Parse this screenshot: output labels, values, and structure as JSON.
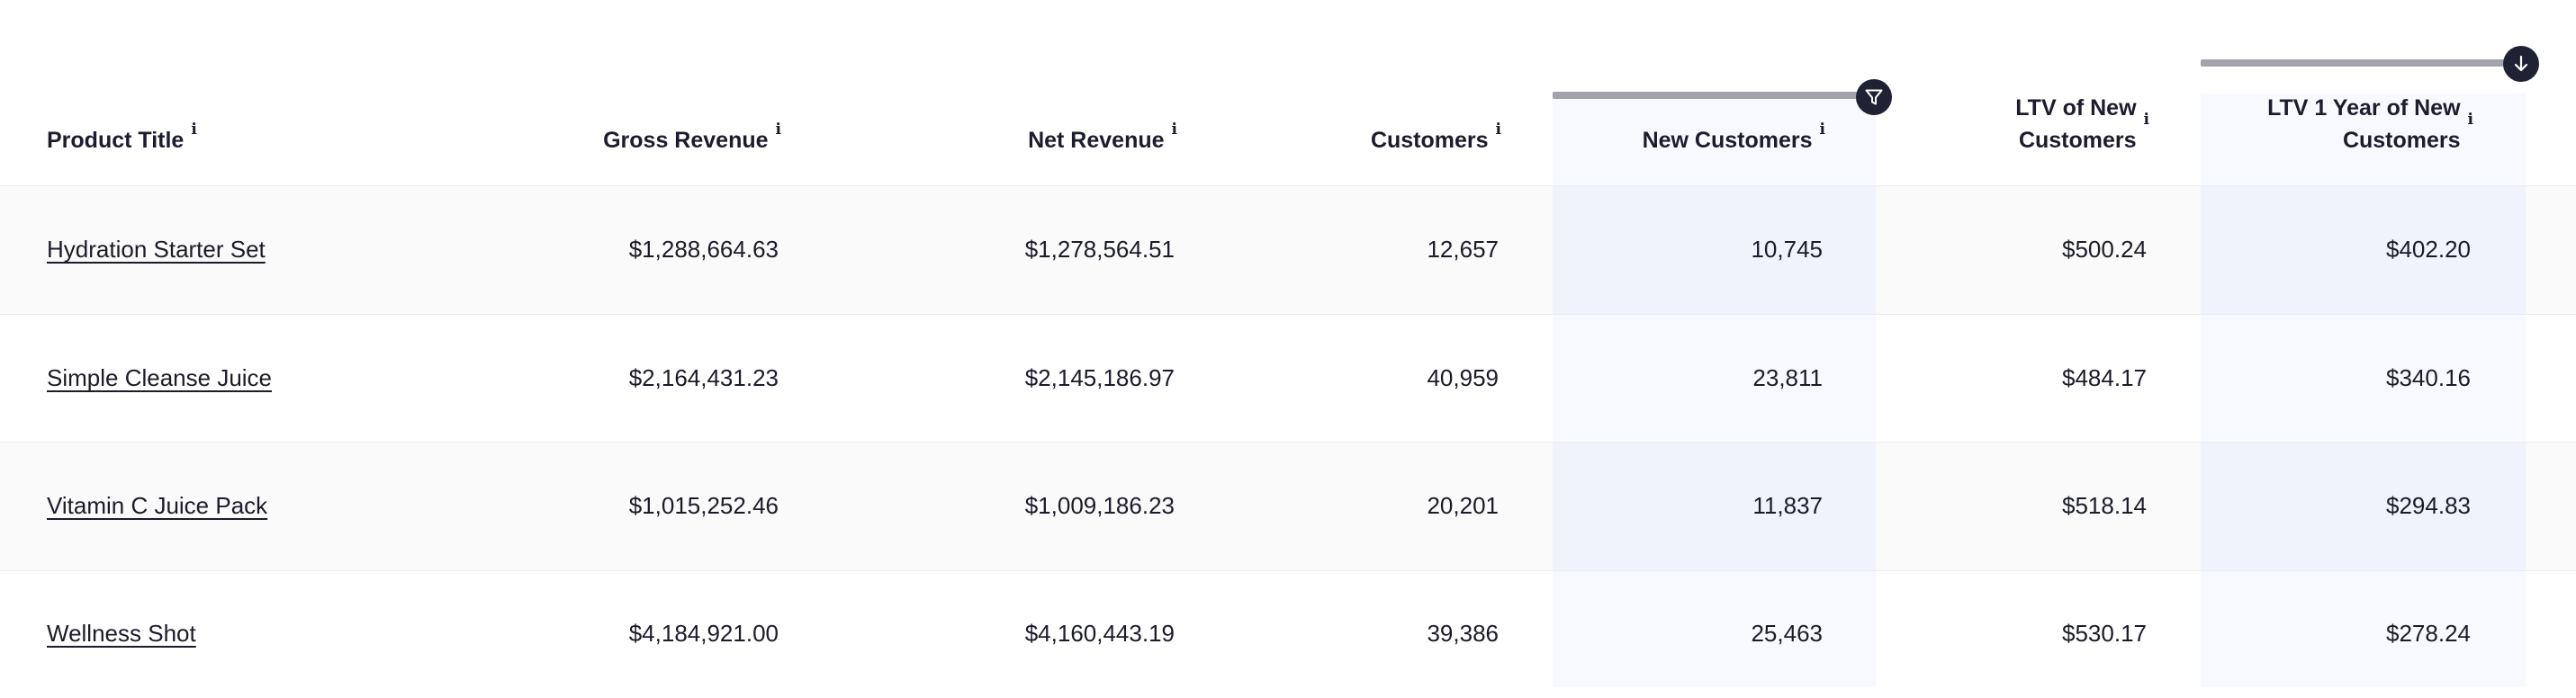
{
  "columns": {
    "product_title": "Product Title",
    "gross_revenue": "Gross Revenue",
    "net_revenue": "Net Revenue",
    "customers": "Customers",
    "new_customers": "New Customers",
    "ltv_new_line1": "LTV of New",
    "ltv_new_line2": "Customers",
    "ltv1_line1": "LTV 1 Year of New",
    "ltv1_line2": "Customers",
    "info_glyph": "i"
  },
  "header_icons": {
    "new_customers": "filter-icon",
    "ltv1": "sort-descending-icon"
  },
  "colors": {
    "highlight_column": "#f8f9fe",
    "highlight_cell": "#f0f2fc",
    "indicator_bar": "#a3a3ab",
    "badge": "#1f2233"
  },
  "rows": [
    {
      "product": "Hydration Starter Set",
      "gross": "$1,288,664.63",
      "net": "$1,278,564.51",
      "customers": "12,657",
      "new_customers": "10,745",
      "ltv_new": "$500.24",
      "ltv1": "$402.20"
    },
    {
      "product": "Simple Cleanse Juice",
      "gross": "$2,164,431.23",
      "net": "$2,145,186.97",
      "customers": "40,959",
      "new_customers": "23,811",
      "ltv_new": "$484.17",
      "ltv1": "$340.16"
    },
    {
      "product": "Vitamin C Juice Pack",
      "gross": "$1,015,252.46",
      "net": "$1,009,186.23",
      "customers": "20,201",
      "new_customers": "11,837",
      "ltv_new": "$518.14",
      "ltv1": "$294.83"
    },
    {
      "product": "Wellness Shot",
      "gross": "$4,184,921.00",
      "net": "$4,160,443.19",
      "customers": "39,386",
      "new_customers": "25,463",
      "ltv_new": "$530.17",
      "ltv1": "$278.24"
    }
  ]
}
